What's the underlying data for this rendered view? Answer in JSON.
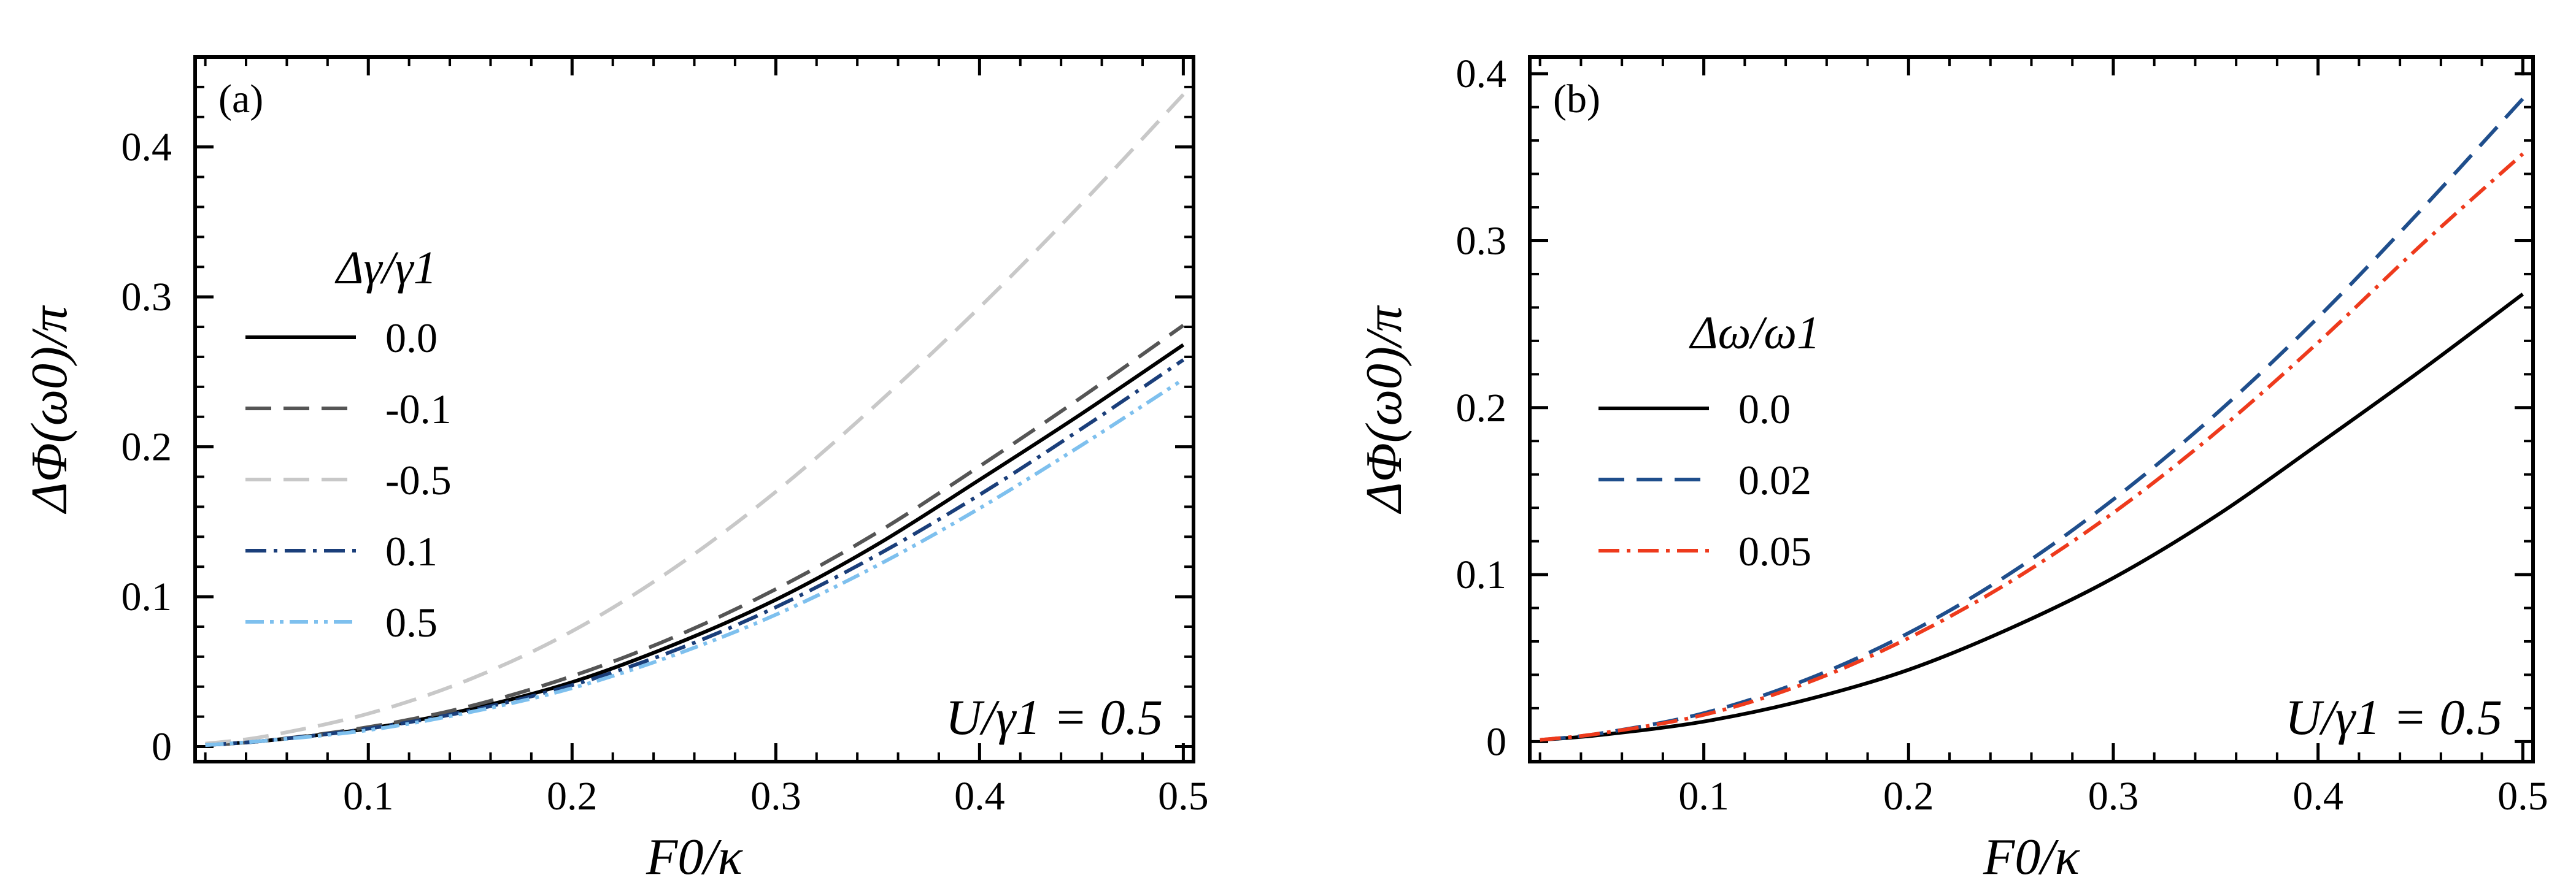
{
  "chart_data": [
    {
      "type": "line",
      "panel_label": "(a)",
      "xlabel": "F0/κ",
      "ylabel": "ΔΦ(ω0)/π",
      "xlim": [
        0.015,
        0.505
      ],
      "ylim": [
        -0.01,
        0.46
      ],
      "xticks": [
        0.1,
        0.2,
        0.3,
        0.4,
        0.5
      ],
      "xtick_labels": [
        "0.1",
        "0.2",
        "0.3",
        "0.4",
        "0.5"
      ],
      "yticks": [
        0,
        0.1,
        0.2,
        0.3,
        0.4
      ],
      "ytick_labels": [
        "0",
        "0.1",
        "0.2",
        "0.3",
        "0.4"
      ],
      "legend_title": "Δγ/γ1",
      "legend_position": "upper-left",
      "annotation": "U/γ1 = 0.5",
      "x": [
        0.02,
        0.05,
        0.1,
        0.15,
        0.2,
        0.25,
        0.3,
        0.35,
        0.4,
        0.45,
        0.5
      ],
      "series": [
        {
          "name": "0.0",
          "color": "#000000",
          "dash": "solid",
          "values": [
            0.001,
            0.004,
            0.012,
            0.025,
            0.043,
            0.068,
            0.098,
            0.135,
            0.178,
            0.222,
            0.268
          ]
        },
        {
          "name": "-0.1",
          "color": "#555555",
          "dash": "long-dash",
          "values": [
            0.001,
            0.004,
            0.013,
            0.027,
            0.047,
            0.073,
            0.105,
            0.143,
            0.187,
            0.233,
            0.281
          ]
        },
        {
          "name": "-0.5",
          "color": "#c8c8c8",
          "dash": "long-dash",
          "values": [
            0.002,
            0.007,
            0.022,
            0.045,
            0.077,
            0.119,
            0.17,
            0.229,
            0.293,
            0.362,
            0.435
          ]
        },
        {
          "name": "0.1",
          "color": "#1a3e7a",
          "dash": "dash-dot",
          "values": [
            0.001,
            0.004,
            0.012,
            0.024,
            0.041,
            0.064,
            0.093,
            0.128,
            0.168,
            0.212,
            0.258
          ]
        },
        {
          "name": "0.5",
          "color": "#7ec0ee",
          "dash": "dash-dot-dot",
          "values": [
            0.001,
            0.004,
            0.011,
            0.023,
            0.039,
            0.061,
            0.088,
            0.121,
            0.159,
            0.201,
            0.245
          ]
        }
      ]
    },
    {
      "type": "line",
      "panel_label": "(b)",
      "xlabel": "F0/κ",
      "ylabel": "ΔΦ(ω0)/π",
      "xlim": [
        0.015,
        0.505
      ],
      "ylim": [
        -0.012,
        0.41
      ],
      "xticks": [
        0.1,
        0.2,
        0.3,
        0.4,
        0.5
      ],
      "xtick_labels": [
        "0.1",
        "0.2",
        "0.3",
        "0.4",
        "0.5"
      ],
      "yticks": [
        0,
        0.1,
        0.2,
        0.3,
        0.4
      ],
      "ytick_labels": [
        "0",
        "0.1",
        "0.2",
        "0.3",
        "0.4"
      ],
      "legend_title": "Δω/ω1",
      "legend_position": "center-left",
      "annotation": "U/γ1 = 0.5",
      "x": [
        0.02,
        0.05,
        0.1,
        0.15,
        0.2,
        0.25,
        0.3,
        0.35,
        0.4,
        0.45,
        0.5
      ],
      "series": [
        {
          "name": "0.0",
          "color": "#000000",
          "dash": "solid",
          "values": [
            0.001,
            0.004,
            0.012,
            0.025,
            0.043,
            0.068,
            0.098,
            0.135,
            0.178,
            0.222,
            0.268
          ]
        },
        {
          "name": "0.02",
          "color": "#1f4e8c",
          "dash": "long-dash",
          "values": [
            0.001,
            0.005,
            0.017,
            0.037,
            0.065,
            0.101,
            0.145,
            0.196,
            0.254,
            0.318,
            0.385
          ]
        },
        {
          "name": "0.05",
          "color": "#ee3a1c",
          "dash": "dash-dot",
          "values": [
            0.001,
            0.005,
            0.016,
            0.035,
            0.062,
            0.096,
            0.137,
            0.185,
            0.239,
            0.297,
            0.352
          ]
        }
      ]
    }
  ]
}
